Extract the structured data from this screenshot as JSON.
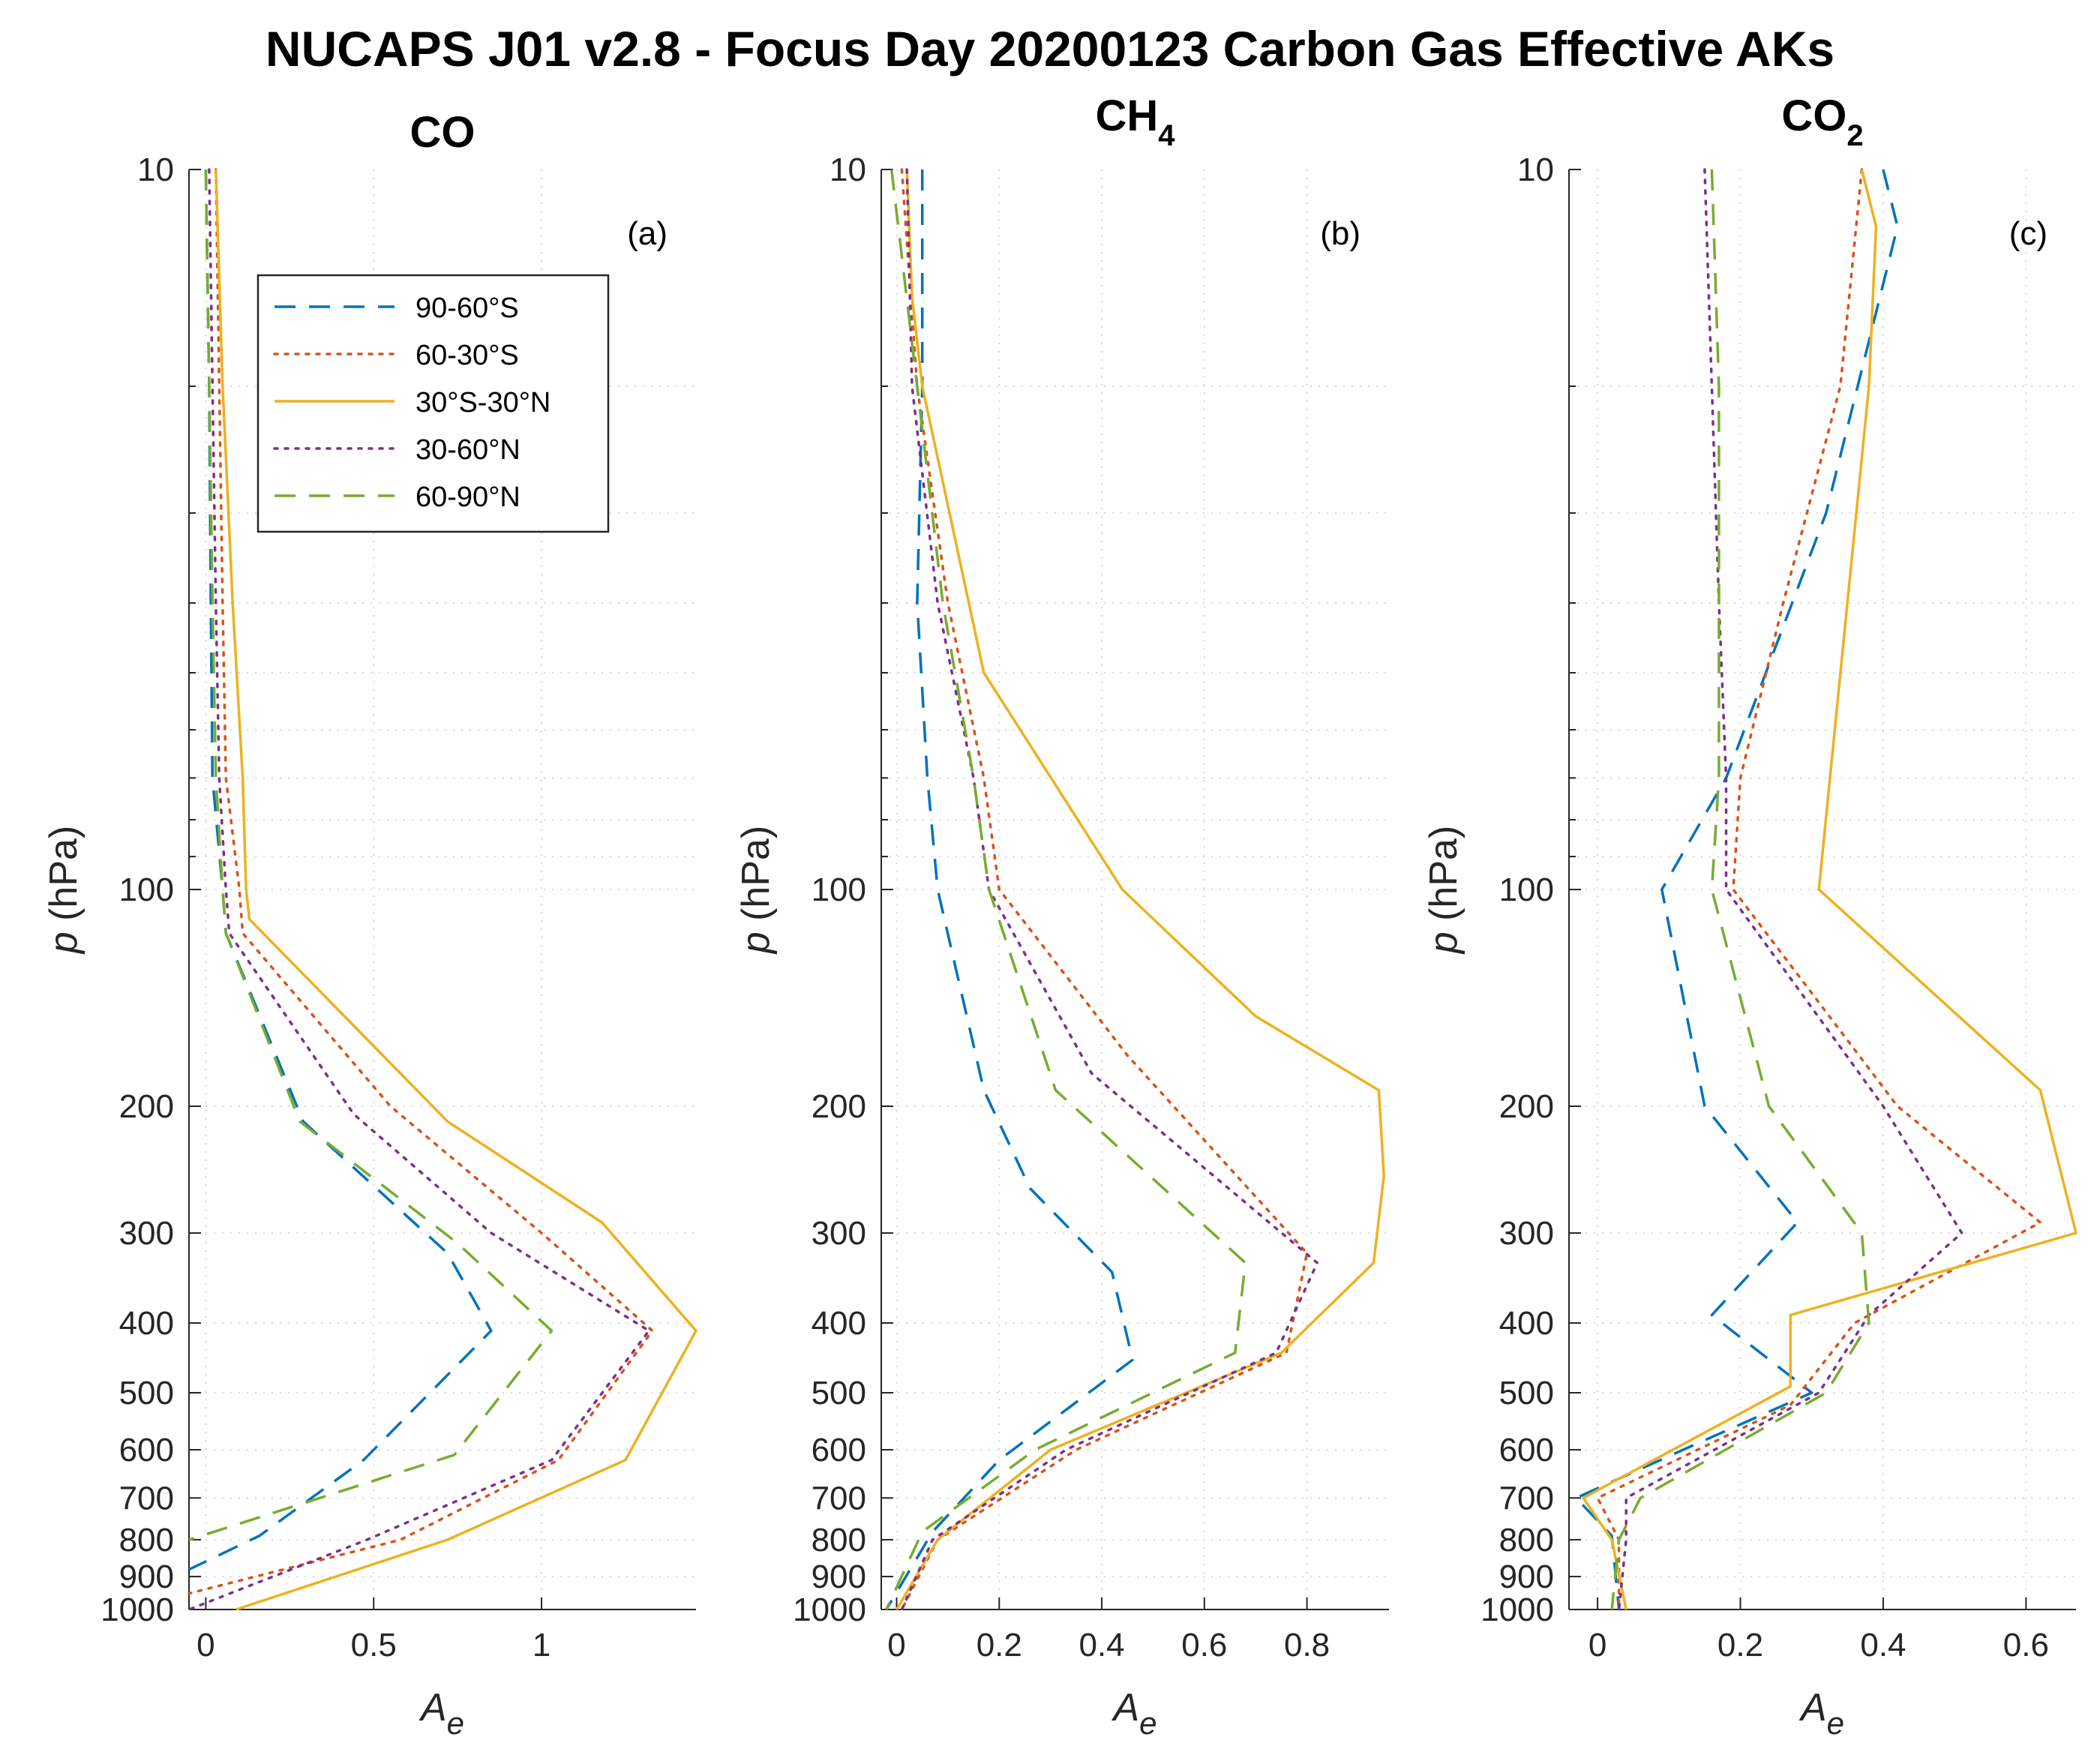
{
  "figure": {
    "title": "NUCAPS J01 v2.8 - Focus Day 20200123 Carbon Gas Effective AKs",
    "ylabel": "p (hPa)",
    "xlabel": "Ae"
  },
  "legend": {
    "entries": [
      "90-60°S",
      "60-30°S",
      "30°S-30°N",
      "30-60°N",
      "60-90°N"
    ]
  },
  "colors": {
    "90-60°S": "#0072BD",
    "60-30°S": "#D95319",
    "30°S-30°N": "#EDB120",
    "30-60°N": "#7E2F8E",
    "60-90°N": "#77AC30"
  },
  "chart_data": [
    {
      "type": "line",
      "panel_label": "(a)",
      "title": "CO",
      "title_main": "CO",
      "title_sub": "",
      "xlabel": "Ae",
      "ylabel": "p (hPa)",
      "yscale": "log",
      "ylim": [
        10,
        1000
      ],
      "yreversed": true,
      "xlim": [
        -0.05,
        1.46
      ],
      "xticks": [
        0,
        0.5,
        1
      ],
      "xtick_labels": [
        "0",
        "0.5",
        "1"
      ],
      "yticks": [
        10,
        100,
        200,
        300,
        400,
        500,
        600,
        700,
        800,
        900,
        1000
      ],
      "ytick_labels": [
        "10",
        "100",
        "200",
        "300",
        "400",
        "500",
        "600",
        "700",
        "800",
        "900",
        "1000"
      ],
      "grid": true,
      "legend_position": "upper-left",
      "series": [
        {
          "name": "90-60°S",
          "style": "dashed",
          "p": [
            10,
            20,
            40,
            70,
            100,
            115,
            210,
            320,
            410,
            620,
            790,
            880
          ],
          "values": [
            0.0,
            0.01,
            0.015,
            0.02,
            0.05,
            0.06,
            0.29,
            0.72,
            0.85,
            0.47,
            0.16,
            -0.05
          ]
        },
        {
          "name": "60-30°S",
          "style": "dotted",
          "p": [
            10,
            20,
            40,
            70,
            100,
            115,
            200,
            300,
            410,
            620,
            800,
            950
          ],
          "values": [
            0.03,
            0.04,
            0.05,
            0.06,
            0.1,
            0.11,
            0.55,
            1.0,
            1.33,
            1.05,
            0.58,
            -0.05
          ]
        },
        {
          "name": "30°S-30°N",
          "style": "solid",
          "p": [
            10,
            20,
            40,
            70,
            100,
            110,
            210,
            290,
            410,
            620,
            800,
            1000
          ],
          "values": [
            0.03,
            0.05,
            0.08,
            0.11,
            0.12,
            0.13,
            0.72,
            1.18,
            1.46,
            1.25,
            0.72,
            0.09
          ]
        },
        {
          "name": "30-60°N",
          "style": "dotted",
          "p": [
            10,
            20,
            40,
            70,
            100,
            115,
            205,
            300,
            410,
            620,
            800,
            1000
          ],
          "values": [
            0.01,
            0.02,
            0.03,
            0.04,
            0.06,
            0.07,
            0.44,
            0.85,
            1.32,
            1.03,
            0.48,
            -0.05
          ]
        },
        {
          "name": "60-90°N",
          "style": "dashed",
          "p": [
            10,
            20,
            40,
            70,
            100,
            115,
            210,
            310,
            410,
            610,
            760,
            800
          ],
          "values": [
            0.0,
            0.01,
            0.02,
            0.03,
            0.05,
            0.06,
            0.28,
            0.75,
            1.03,
            0.74,
            0.1,
            -0.05
          ]
        }
      ]
    },
    {
      "type": "line",
      "panel_label": "(b)",
      "title": "CH4",
      "title_main": "CH",
      "title_sub": "4",
      "xlabel": "Ae",
      "ylabel": "p (hPa)",
      "yscale": "log",
      "ylim": [
        10,
        1000
      ],
      "yreversed": true,
      "xlim": [
        -0.03,
        0.96
      ],
      "xticks": [
        0,
        0.2,
        0.4,
        0.6,
        0.8
      ],
      "xtick_labels": [
        "0",
        "0.2",
        "0.4",
        "0.6",
        "0.8"
      ],
      "yticks": [
        10,
        100,
        200,
        300,
        400,
        500,
        600,
        700,
        800,
        900,
        1000
      ],
      "ytick_labels": [
        "10",
        "100",
        "200",
        "300",
        "400",
        "500",
        "600",
        "700",
        "800",
        "900",
        "1000"
      ],
      "grid": true,
      "series": [
        {
          "name": "90-60°S",
          "style": "dashed",
          "p": [
            10,
            20,
            40,
            70,
            100,
            190,
            260,
            340,
            450,
            620,
            780,
            1000
          ],
          "values": [
            0.05,
            0.05,
            0.04,
            0.06,
            0.08,
            0.17,
            0.26,
            0.42,
            0.46,
            0.2,
            0.07,
            -0.02
          ]
        },
        {
          "name": "60-30°S",
          "style": "dotted",
          "p": [
            10,
            20,
            40,
            70,
            100,
            170,
            320,
            440,
            600,
            800,
            1000
          ],
          "values": [
            0.01,
            0.04,
            0.1,
            0.17,
            0.2,
            0.45,
            0.8,
            0.76,
            0.35,
            0.08,
            0.01
          ]
        },
        {
          "name": "30°S-30°N",
          "style": "solid",
          "p": [
            10,
            15,
            20,
            50,
            100,
            150,
            190,
            250,
            330,
            440,
            600,
            800,
            1000
          ],
          "values": [
            0.02,
            0.03,
            0.05,
            0.17,
            0.44,
            0.7,
            0.94,
            0.95,
            0.93,
            0.75,
            0.3,
            0.08,
            0.0
          ]
        },
        {
          "name": "30-60°N",
          "style": "dotted",
          "p": [
            10,
            20,
            40,
            70,
            100,
            180,
            330,
            440,
            600,
            800,
            1000
          ],
          "values": [
            0.02,
            0.03,
            0.08,
            0.15,
            0.18,
            0.38,
            0.82,
            0.74,
            0.33,
            0.07,
            0.01
          ]
        },
        {
          "name": "60-90°N",
          "style": "dashed",
          "p": [
            10,
            20,
            40,
            70,
            100,
            190,
            330,
            440,
            600,
            780,
            1000
          ],
          "values": [
            -0.01,
            0.04,
            0.09,
            0.15,
            0.18,
            0.31,
            0.68,
            0.66,
            0.27,
            0.05,
            -0.02
          ]
        }
      ]
    },
    {
      "type": "line",
      "panel_label": "(c)",
      "title": "CO2",
      "title_main": "CO",
      "title_sub": "2",
      "xlabel": "Ae",
      "ylabel": "p (hPa)",
      "yscale": "log",
      "ylim": [
        10,
        1000
      ],
      "yreversed": true,
      "xlim": [
        -0.04,
        0.67
      ],
      "xticks": [
        0,
        0.2,
        0.4,
        0.6
      ],
      "xtick_labels": [
        "0",
        "0.2",
        "0.4",
        "0.6"
      ],
      "yticks": [
        10,
        100,
        200,
        300,
        400,
        500,
        600,
        700,
        800,
        900,
        1000
      ],
      "ytick_labels": [
        "10",
        "100",
        "200",
        "300",
        "400",
        "500",
        "600",
        "700",
        "800",
        "900",
        "1000"
      ],
      "grid": true,
      "series": [
        {
          "name": "90-60°S",
          "style": "dashed",
          "p": [
            10,
            12,
            30,
            70,
            100,
            200,
            290,
            390,
            500,
            600,
            700,
            790,
            1000
          ],
          "values": [
            0.4,
            0.42,
            0.32,
            0.18,
            0.09,
            0.15,
            0.28,
            0.16,
            0.3,
            0.12,
            -0.03,
            0.02,
            0.03
          ]
        },
        {
          "name": "60-30°S",
          "style": "dotted",
          "p": [
            10,
            20,
            40,
            70,
            100,
            200,
            290,
            400,
            520,
            700,
            800,
            1000
          ],
          "values": [
            0.37,
            0.34,
            0.26,
            0.2,
            0.19,
            0.42,
            0.62,
            0.36,
            0.27,
            0.0,
            0.03,
            0.03
          ]
        },
        {
          "name": "30°S-30°N",
          "style": "solid",
          "p": [
            10,
            12,
            20,
            100,
            190,
            300,
            390,
            490,
            700,
            800,
            1000
          ],
          "values": [
            0.37,
            0.39,
            0.38,
            0.31,
            0.62,
            0.67,
            0.27,
            0.27,
            -0.02,
            0.02,
            0.04
          ]
        },
        {
          "name": "30-60°N",
          "style": "dotted",
          "p": [
            10,
            20,
            40,
            70,
            100,
            200,
            300,
            390,
            500,
            700,
            800,
            1000
          ],
          "values": [
            0.15,
            0.16,
            0.17,
            0.18,
            0.18,
            0.4,
            0.51,
            0.38,
            0.31,
            0.04,
            0.04,
            0.03
          ]
        },
        {
          "name": "60-90°N",
          "style": "dashed",
          "p": [
            10,
            20,
            40,
            70,
            100,
            200,
            300,
            400,
            500,
            700,
            800,
            1000
          ],
          "values": [
            0.16,
            0.17,
            0.17,
            0.17,
            0.16,
            0.24,
            0.37,
            0.38,
            0.32,
            0.06,
            0.03,
            0.02
          ]
        }
      ]
    }
  ]
}
